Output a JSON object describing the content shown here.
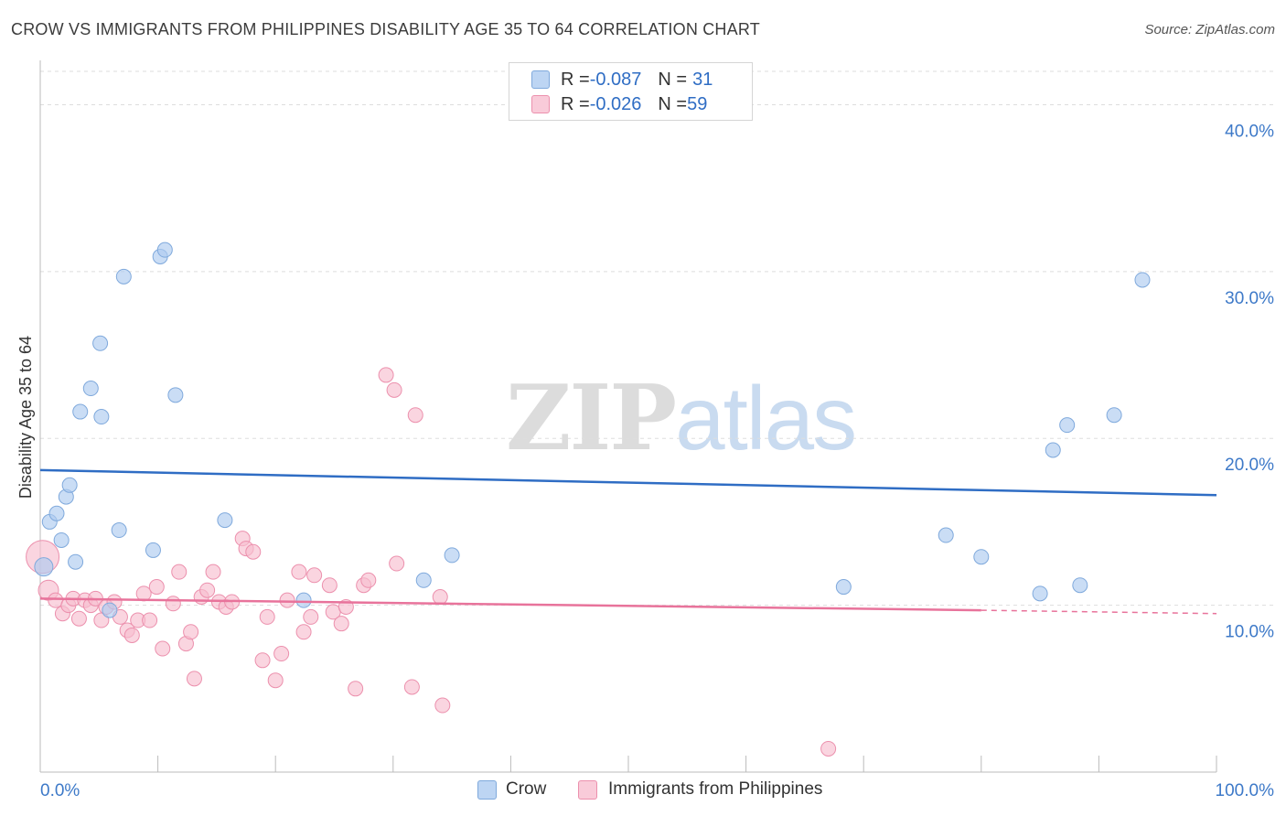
{
  "title": "CROW VS IMMIGRANTS FROM PHILIPPINES DISABILITY AGE 35 TO 64 CORRELATION CHART",
  "source": "Source: ZipAtlas.com",
  "watermark": {
    "zip": "ZIP",
    "atlas": "atlas"
  },
  "legend": {
    "crow": {
      "r_label": "R = ",
      "r_value": "-0.087",
      "n_label": "N = ",
      "n_value": "31"
    },
    "phil": {
      "r_label": "R = ",
      "r_value": "-0.026",
      "n_label": "N = ",
      "n_value": "59"
    }
  },
  "bottom_legend": {
    "crow": "Crow",
    "phil": "Immigrants from Philippines"
  },
  "colors": {
    "crow_fill": "#aecbf0",
    "crow_stroke": "#7fa9dc",
    "crow_line": "#2f6dc4",
    "phil_fill": "#f7bfd0",
    "phil_stroke": "#ec90ad",
    "phil_line": "#e8739b",
    "axis_text": "#3d79c8",
    "grid": "#dddddd"
  },
  "chart_data": {
    "type": "scatter",
    "title": "CROW VS IMMIGRANTS FROM PHILIPPINES DISABILITY AGE 35 TO 64 CORRELATION CHART",
    "xlabel": "",
    "ylabel": "Disability Age 35 to 64",
    "xlim": [
      0,
      100
    ],
    "ylim": [
      0,
      42
    ],
    "x_tick_labels": [
      "0.0%",
      "100.0%"
    ],
    "y_ticks": [
      10,
      20,
      30,
      40
    ],
    "y_tick_labels": [
      "10.0%",
      "20.0%",
      "30.0%",
      "40.0%"
    ],
    "series": [
      {
        "name": "Crow",
        "r": -0.087,
        "n": 31,
        "trend": {
          "x": [
            0,
            100
          ],
          "y": [
            18.1,
            16.6
          ]
        },
        "points": [
          [
            0.3,
            12.3,
            10
          ],
          [
            0.8,
            15.0,
            8
          ],
          [
            1.4,
            15.5,
            8
          ],
          [
            1.8,
            13.9,
            8
          ],
          [
            2.2,
            16.5,
            8
          ],
          [
            2.5,
            17.2,
            8
          ],
          [
            3.0,
            12.6,
            8
          ],
          [
            3.4,
            21.6,
            8
          ],
          [
            4.3,
            23.0,
            8
          ],
          [
            5.1,
            25.7,
            8
          ],
          [
            5.2,
            21.3,
            8
          ],
          [
            5.9,
            9.7,
            8
          ],
          [
            6.7,
            14.5,
            8
          ],
          [
            7.1,
            29.7,
            8
          ],
          [
            9.6,
            13.3,
            8
          ],
          [
            10.2,
            30.9,
            8
          ],
          [
            10.6,
            31.3,
            8
          ],
          [
            11.5,
            22.6,
            8
          ],
          [
            15.7,
            15.1,
            8
          ],
          [
            22.4,
            10.3,
            8
          ],
          [
            32.6,
            11.5,
            8
          ],
          [
            35.0,
            13.0,
            8
          ],
          [
            68.3,
            11.1,
            8
          ],
          [
            77.0,
            14.2,
            8
          ],
          [
            80.0,
            12.9,
            8
          ],
          [
            85.0,
            10.7,
            8
          ],
          [
            86.1,
            19.3,
            8
          ],
          [
            87.3,
            20.8,
            8
          ],
          [
            88.4,
            11.2,
            8
          ],
          [
            91.3,
            21.4,
            8
          ],
          [
            93.7,
            29.5,
            8
          ]
        ]
      },
      {
        "name": "Immigrants from Philippines",
        "r": -0.026,
        "n": 59,
        "trend": {
          "x": [
            0,
            80
          ],
          "y": [
            10.4,
            9.7
          ],
          "dashed_to": {
            "x": 100,
            "y": 9.5
          }
        },
        "points": [
          [
            0.2,
            12.9,
            18
          ],
          [
            0.7,
            10.9,
            11
          ],
          [
            1.3,
            10.3,
            8
          ],
          [
            1.9,
            9.5,
            8
          ],
          [
            2.4,
            10.0,
            8
          ],
          [
            2.8,
            10.4,
            8
          ],
          [
            3.3,
            9.2,
            8
          ],
          [
            3.8,
            10.3,
            8
          ],
          [
            4.3,
            10.0,
            8
          ],
          [
            4.7,
            10.4,
            8
          ],
          [
            5.2,
            9.1,
            8
          ],
          [
            5.6,
            9.9,
            8
          ],
          [
            6.3,
            10.2,
            8
          ],
          [
            6.8,
            9.3,
            8
          ],
          [
            7.4,
            8.5,
            8
          ],
          [
            7.8,
            8.2,
            8
          ],
          [
            8.3,
            9.1,
            8
          ],
          [
            8.8,
            10.7,
            8
          ],
          [
            9.3,
            9.1,
            8
          ],
          [
            9.9,
            11.1,
            8
          ],
          [
            10.4,
            7.4,
            8
          ],
          [
            11.3,
            10.1,
            8
          ],
          [
            11.8,
            12.0,
            8
          ],
          [
            12.4,
            7.7,
            8
          ],
          [
            12.8,
            8.4,
            8
          ],
          [
            13.1,
            5.6,
            8
          ],
          [
            13.7,
            10.5,
            8
          ],
          [
            14.2,
            10.9,
            8
          ],
          [
            14.7,
            12.0,
            8
          ],
          [
            15.2,
            10.2,
            8
          ],
          [
            15.8,
            9.9,
            8
          ],
          [
            16.3,
            10.2,
            8
          ],
          [
            17.2,
            14.0,
            8
          ],
          [
            17.5,
            13.4,
            8
          ],
          [
            18.1,
            13.2,
            8
          ],
          [
            18.9,
            6.7,
            8
          ],
          [
            19.3,
            9.3,
            8
          ],
          [
            20.0,
            5.5,
            8
          ],
          [
            20.5,
            7.1,
            8
          ],
          [
            21.0,
            10.3,
            8
          ],
          [
            22.0,
            12.0,
            8
          ],
          [
            22.4,
            8.4,
            8
          ],
          [
            23.0,
            9.3,
            8
          ],
          [
            23.3,
            11.8,
            8
          ],
          [
            24.6,
            11.2,
            8
          ],
          [
            24.9,
            9.6,
            8
          ],
          [
            25.6,
            8.9,
            8
          ],
          [
            26.0,
            9.9,
            8
          ],
          [
            26.8,
            5.0,
            8
          ],
          [
            27.5,
            11.2,
            8
          ],
          [
            27.9,
            11.5,
            8
          ],
          [
            29.4,
            23.8,
            8
          ],
          [
            30.1,
            22.9,
            8
          ],
          [
            30.3,
            12.5,
            8
          ],
          [
            31.6,
            5.1,
            8
          ],
          [
            31.9,
            21.4,
            8
          ],
          [
            34.0,
            10.5,
            8
          ],
          [
            34.2,
            4.0,
            8
          ],
          [
            67.0,
            1.4,
            8
          ]
        ]
      }
    ]
  }
}
